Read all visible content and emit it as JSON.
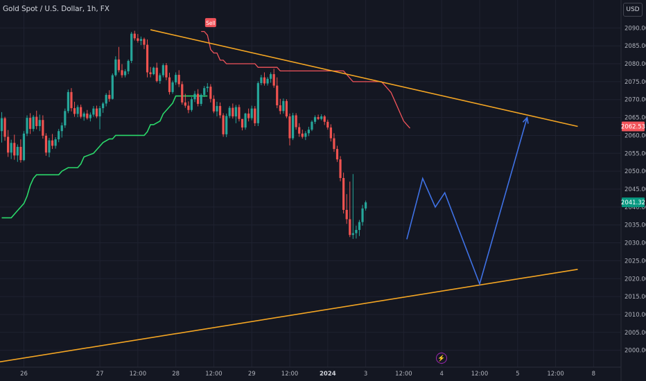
{
  "header": {
    "title": "Gold Spot / U.S. Dollar, 1h, FX"
  },
  "currency_button": "USD",
  "icons": {
    "flash": "lightning-icon"
  },
  "colors": {
    "background": "#141722",
    "grid": "#1f2230",
    "up": "#26a69a",
    "down": "#ef5350",
    "stop_line": "#2bd96b",
    "sell_line": "#f2545b",
    "trendline": "#f5a623",
    "projection": "#3f72e6",
    "axis_text": "#b2b5be"
  },
  "chart_data": {
    "type": "candlestick",
    "symbol": "Gold Spot / U.S. Dollar",
    "interval": "1h",
    "exchange": "FX",
    "ylim": [
      1998,
      2092
    ],
    "y_ticks": [
      2000,
      2005,
      2010,
      2015,
      2020,
      2025,
      2030,
      2035,
      2040,
      2045,
      2050,
      2055,
      2060,
      2065,
      2070,
      2075,
      2080,
      2085,
      2090
    ],
    "y_tick_labels": [
      "2000.00",
      "2005.00",
      "2010.00",
      "2015.00",
      "2020.00",
      "2025.00",
      "2030.00",
      "2035.00",
      "2040.00",
      "2045.00",
      "2050.00",
      "2055.00",
      "2060.00",
      "2065.00",
      "2070.00",
      "2075.00",
      "2080.00",
      "2085.00",
      "2090.00"
    ],
    "x_ticks": [
      {
        "label": "26",
        "pos": 0
      },
      {
        "label": "27",
        "pos": 24
      },
      {
        "label": "12:00",
        "pos": 36
      },
      {
        "label": "28",
        "pos": 48
      },
      {
        "label": "12:00",
        "pos": 60
      },
      {
        "label": "29",
        "pos": 72
      },
      {
        "label": "12:00",
        "pos": 84
      },
      {
        "label": "2024",
        "pos": 96
      },
      {
        "label": "3",
        "pos": 108
      },
      {
        "label": "12:00",
        "pos": 120
      },
      {
        "label": "4",
        "pos": 132
      },
      {
        "label": "12:00",
        "pos": 144
      },
      {
        "label": "5",
        "pos": 156
      },
      {
        "label": "12:00",
        "pos": 168
      },
      {
        "label": "8",
        "pos": 180
      }
    ],
    "candles_ohlc": [
      [
        2061.2,
        2066.5,
        2058.0,
        2064.8
      ],
      [
        2064.8,
        2065.2,
        2058.5,
        2059.6
      ],
      [
        2059.6,
        2061.5,
        2054.0,
        2055.2
      ],
      [
        2055.2,
        2058.8,
        2053.4,
        2057.9
      ],
      [
        2057.9,
        2060.2,
        2053.2,
        2054.4
      ],
      [
        2054.4,
        2057.5,
        2052.6,
        2056.8
      ],
      [
        2056.8,
        2058.9,
        2052.4,
        2053.1
      ],
      [
        2053.1,
        2061.2,
        2052.8,
        2060.5
      ],
      [
        2060.5,
        2065.6,
        2059.8,
        2064.9
      ],
      [
        2064.9,
        2066.2,
        2060.4,
        2061.8
      ],
      [
        2061.8,
        2065.7,
        2061.1,
        2065.2
      ],
      [
        2065.2,
        2066.9,
        2061.7,
        2062.6
      ],
      [
        2062.6,
        2065.8,
        2061.2,
        2064.3
      ],
      [
        2064.3,
        2065.6,
        2059.1,
        2059.9
      ],
      [
        2059.9,
        2060.6,
        2054.3,
        2055.2
      ],
      [
        2055.2,
        2059.3,
        2053.9,
        2058.6
      ],
      [
        2058.6,
        2060.4,
        2056.2,
        2057.1
      ],
      [
        2057.1,
        2059.5,
        2056.3,
        2058.9
      ],
      [
        2058.9,
        2061.8,
        2058.1,
        2061.2
      ],
      [
        2061.2,
        2063.6,
        2059.4,
        2062.8
      ],
      [
        2062.8,
        2067.5,
        2062.1,
        2066.8
      ],
      [
        2066.8,
        2072.8,
        2066.2,
        2072.1
      ],
      [
        2072.1,
        2073.2,
        2066.7,
        2067.6
      ],
      [
        2067.6,
        2069.4,
        2065.2,
        2066.0
      ],
      [
        2066.0,
        2068.5,
        2065.1,
        2067.9
      ],
      [
        2067.9,
        2068.6,
        2064.7,
        2065.2
      ],
      [
        2065.2,
        2066.6,
        2064.1,
        2066.1
      ],
      [
        2066.1,
        2067.1,
        2064.4,
        2064.8
      ],
      [
        2064.8,
        2066.4,
        2063.9,
        2065.8
      ],
      [
        2065.8,
        2068.2,
        2065.2,
        2067.5
      ],
      [
        2067.5,
        2068.3,
        2064.8,
        2065.3
      ],
      [
        2065.3,
        2068.2,
        2061.7,
        2067.6
      ],
      [
        2067.6,
        2069.3,
        2066.3,
        2068.9
      ],
      [
        2068.9,
        2071.8,
        2068.1,
        2071.3
      ],
      [
        2071.3,
        2072.6,
        2069.4,
        2070.2
      ],
      [
        2070.2,
        2077.3,
        2070.0,
        2076.8
      ],
      [
        2076.8,
        2082.1,
        2076.4,
        2081.2
      ],
      [
        2081.2,
        2084.7,
        2077.6,
        2078.2
      ],
      [
        2078.2,
        2079.9,
        2076.1,
        2076.8
      ],
      [
        2076.8,
        2078.5,
        2076.2,
        2077.9
      ],
      [
        2077.9,
        2081.2,
        2077.1,
        2080.8
      ],
      [
        2080.8,
        2088.9,
        2080.2,
        2088.4
      ],
      [
        2088.4,
        2089.2,
        2086.5,
        2087.1
      ],
      [
        2087.1,
        2088.3,
        2085.9,
        2086.4
      ],
      [
        2086.4,
        2087.6,
        2085.2,
        2086.9
      ],
      [
        2086.9,
        2087.3,
        2084.1,
        2085.3
      ],
      [
        2085.3,
        2086.8,
        2076.2,
        2077.6
      ],
      [
        2077.6,
        2079.1,
        2076.2,
        2077.1
      ],
      [
        2077.1,
        2079.2,
        2076.8,
        2078.9
      ],
      [
        2078.9,
        2080.3,
        2074.8,
        2075.2
      ],
      [
        2075.2,
        2077.4,
        2074.4,
        2076.8
      ],
      [
        2076.8,
        2080.1,
        2076.2,
        2079.6
      ],
      [
        2079.6,
        2080.2,
        2075.4,
        2076.2
      ],
      [
        2076.2,
        2077.5,
        2071.4,
        2072.1
      ],
      [
        2072.1,
        2075.3,
        2071.6,
        2074.8
      ],
      [
        2074.8,
        2077.6,
        2074.1,
        2076.9
      ],
      [
        2076.9,
        2078.2,
        2073.5,
        2074.3
      ],
      [
        2074.3,
        2075.1,
        2068.6,
        2069.2
      ],
      [
        2069.2,
        2071.6,
        2067.7,
        2068.3
      ],
      [
        2068.3,
        2069.5,
        2066.2,
        2067.1
      ],
      [
        2067.1,
        2070.7,
        2066.6,
        2070.1
      ],
      [
        2070.1,
        2072.4,
        2069.3,
        2071.6
      ],
      [
        2071.6,
        2072.9,
        2068.1,
        2068.8
      ],
      [
        2068.8,
        2071.7,
        2068.2,
        2071.3
      ],
      [
        2071.3,
        2073.8,
        2070.7,
        2073.2
      ],
      [
        2073.2,
        2074.6,
        2072.1,
        2073.6
      ],
      [
        2073.6,
        2074.3,
        2069.2,
        2070.2
      ],
      [
        2070.2,
        2071.2,
        2066.2,
        2066.7
      ],
      [
        2066.7,
        2069.4,
        2065.3,
        2068.2
      ],
      [
        2068.2,
        2069.2,
        2064.8,
        2065.6
      ],
      [
        2065.6,
        2066.2,
        2059.6,
        2060.3
      ],
      [
        2060.3,
        2066.1,
        2059.5,
        2065.4
      ],
      [
        2065.4,
        2068.2,
        2064.8,
        2067.7
      ],
      [
        2067.7,
        2068.9,
        2064.7,
        2065.3
      ],
      [
        2065.3,
        2068.5,
        2063.4,
        2067.9
      ],
      [
        2067.9,
        2068.6,
        2063.9,
        2064.6
      ],
      [
        2064.6,
        2063.8,
        2061.4,
        2062.2
      ],
      [
        2062.2,
        2066.3,
        2061.6,
        2066.1
      ],
      [
        2066.1,
        2067.5,
        2063.9,
        2064.8
      ],
      [
        2064.8,
        2068.3,
        2064.2,
        2067.5
      ],
      [
        2067.5,
        2068.2,
        2062.6,
        2063.4
      ],
      [
        2063.4,
        2075.1,
        2062.6,
        2074.6
      ],
      [
        2074.6,
        2076.9,
        2074.0,
        2076.2
      ],
      [
        2076.2,
        2077.6,
        2073.9,
        2074.5
      ],
      [
        2074.5,
        2076.3,
        2073.9,
        2075.8
      ],
      [
        2075.8,
        2077.6,
        2074.7,
        2077.1
      ],
      [
        2077.1,
        2078.6,
        2073.3,
        2073.9
      ],
      [
        2073.9,
        2076.2,
        2067.6,
        2068.4
      ],
      [
        2068.4,
        2070.2,
        2065.9,
        2066.8
      ],
      [
        2066.8,
        2070.3,
        2066.1,
        2069.6
      ],
      [
        2069.6,
        2070.1,
        2064.8,
        2065.3
      ],
      [
        2065.3,
        2066.1,
        2057.2,
        2059.2
      ],
      [
        2059.2,
        2066.3,
        2058.7,
        2065.6
      ],
      [
        2065.6,
        2066.2,
        2061.6,
        2062.3
      ],
      [
        2062.3,
        2063.4,
        2059.6,
        2060.5
      ],
      [
        2060.5,
        2061.6,
        2059.1,
        2059.6
      ],
      [
        2059.6,
        2061.2,
        2058.7,
        2060.6
      ],
      [
        2060.6,
        2062.4,
        2059.8,
        2061.6
      ],
      [
        2061.6,
        2064.2,
        2061.2,
        2063.8
      ],
      [
        2063.8,
        2065.6,
        2063.2,
        2065.1
      ],
      [
        2065.1,
        2065.8,
        2064.3,
        2064.6
      ],
      [
        2064.6,
        2065.9,
        2064.2,
        2065.3
      ],
      [
        2065.3,
        2065.7,
        2062.9,
        2063.8
      ],
      [
        2063.8,
        2064.4,
        2061.6,
        2062.2
      ],
      [
        2062.2,
        2063.1,
        2058.3,
        2059.2
      ],
      [
        2059.2,
        2060.6,
        2055.4,
        2056.2
      ],
      [
        2056.2,
        2057.1,
        2052.6,
        2053.3
      ],
      [
        2053.3,
        2054.2,
        2047.2,
        2048.1
      ],
      [
        2048.1,
        2049.6,
        2038.2,
        2039.2
      ],
      [
        2039.2,
        2043.6,
        2035.3,
        2036.6
      ],
      [
        2036.6,
        2047.1,
        2031.6,
        2032.2
      ],
      [
        2032.2,
        2049.2,
        2031.1,
        2032.7
      ],
      [
        2032.7,
        2034.8,
        2031.2,
        2033.6
      ],
      [
        2033.6,
        2036.4,
        2031.9,
        2035.8
      ],
      [
        2035.8,
        2040.6,
        2034.8,
        2039.6
      ],
      [
        2039.6,
        2041.8,
        2039.0,
        2041.3
      ]
    ],
    "green_line_points": [
      [
        0,
        2037
      ],
      [
        3,
        2037
      ],
      [
        5,
        2039
      ],
      [
        6,
        2040
      ],
      [
        7,
        2041
      ],
      [
        8,
        2043
      ],
      [
        9,
        2046
      ],
      [
        10,
        2048
      ],
      [
        11,
        2049
      ],
      [
        12,
        2049
      ],
      [
        18,
        2049
      ],
      [
        19,
        2050
      ],
      [
        21,
        2051
      ],
      [
        24,
        2051
      ],
      [
        25,
        2052
      ],
      [
        26,
        2054
      ],
      [
        29,
        2055
      ],
      [
        31,
        2057
      ],
      [
        32,
        2058
      ],
      [
        34,
        2059
      ],
      [
        35,
        2059
      ],
      [
        36,
        2060
      ],
      [
        45,
        2060
      ],
      [
        46,
        2061
      ],
      [
        47,
        2063
      ],
      [
        48,
        2063
      ],
      [
        50,
        2064
      ],
      [
        51,
        2066
      ],
      [
        53,
        2068
      ],
      [
        54,
        2069
      ],
      [
        55,
        2071
      ],
      [
        56,
        2071
      ],
      [
        65,
        2071
      ]
    ],
    "red_line_points": [
      [
        63,
        2089
      ],
      [
        64,
        2089
      ],
      [
        65,
        2088
      ],
      [
        66,
        2084
      ],
      [
        67,
        2083
      ],
      [
        68,
        2083
      ],
      [
        69,
        2081
      ],
      [
        70,
        2081
      ],
      [
        71,
        2080
      ],
      [
        80,
        2080
      ],
      [
        81,
        2079
      ],
      [
        87,
        2079
      ],
      [
        88,
        2078
      ],
      [
        100,
        2078
      ],
      [
        101,
        2078
      ],
      [
        108,
        2078
      ],
      [
        109,
        2077
      ],
      [
        111,
        2075
      ],
      [
        112,
        2075
      ],
      [
        120,
        2075
      ],
      [
        121,
        2074
      ],
      [
        123,
        2072
      ],
      [
        124,
        2070
      ],
      [
        126,
        2066
      ],
      [
        127,
        2064
      ],
      [
        128,
        2063
      ],
      [
        129,
        2062
      ]
    ],
    "sell_marker": {
      "label": "Sell",
      "x": 66,
      "y": 2091
    },
    "upper_trendline": [
      [
        47,
        2089.5
      ],
      [
        182,
        2062.5
      ]
    ],
    "lower_trendline": [
      [
        -6,
        1996
      ],
      [
        182,
        2022.6
      ]
    ],
    "projection_path": [
      [
        128,
        2031
      ],
      [
        133,
        2048
      ],
      [
        137,
        2040
      ],
      [
        140,
        2044
      ],
      [
        151,
        2018.5
      ],
      [
        166,
        2065
      ]
    ],
    "price_labels": [
      {
        "value": "2062.53",
        "price": 2062.5,
        "color": "#f2545b"
      },
      {
        "value": "2041.32",
        "price": 2041.3,
        "color": "#089981"
      }
    ]
  }
}
